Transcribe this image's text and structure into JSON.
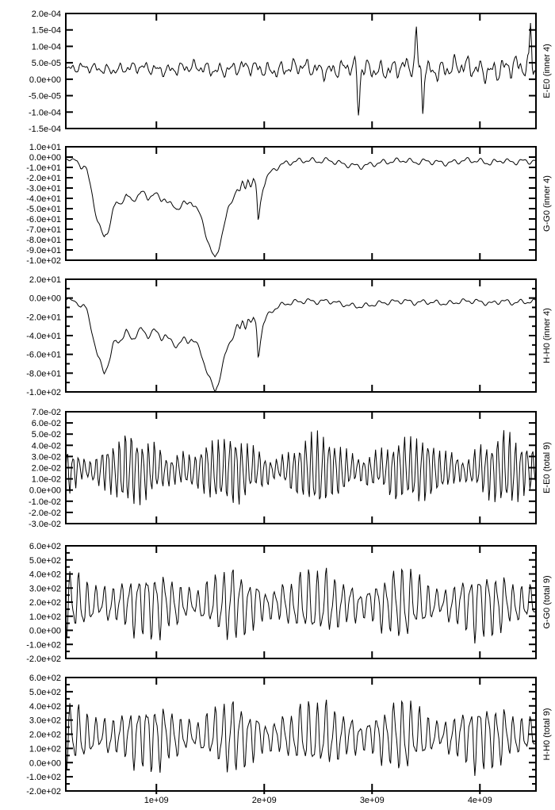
{
  "page": {
    "background": "#ffffff"
  },
  "chart_data": {
    "type": "line",
    "line_color": "#000000",
    "x_axis": {
      "min_e9": 0.16,
      "max_e9": 4.52,
      "ticks": [
        {
          "value_e9": 1,
          "label": "1e+09"
        },
        {
          "value_e9": 2,
          "label": "2e+09"
        },
        {
          "value_e9": 3,
          "label": "3e+09"
        },
        {
          "value_e9": 4,
          "label": "4e+09"
        }
      ]
    },
    "shared_keypoints": {
      "inner_drift": [
        [
          0.16,
          -0.5
        ],
        [
          0.2,
          -2
        ],
        [
          0.235,
          -5
        ],
        [
          0.265,
          -3
        ],
        [
          0.3,
          -10
        ],
        [
          0.325,
          -7
        ],
        [
          0.355,
          -14
        ],
        [
          0.385,
          -26
        ],
        [
          0.42,
          -45
        ],
        [
          0.455,
          -62
        ],
        [
          0.49,
          -72
        ],
        [
          0.515,
          -79
        ],
        [
          0.545,
          -73
        ],
        [
          0.575,
          -62
        ],
        [
          0.6,
          -50
        ],
        [
          0.625,
          -45
        ],
        [
          0.65,
          -47
        ],
        [
          0.675,
          -43
        ],
        [
          0.7,
          -40
        ],
        [
          0.72,
          -36
        ],
        [
          0.745,
          -39
        ],
        [
          0.77,
          -44
        ],
        [
          0.8,
          -41
        ],
        [
          0.83,
          -36
        ],
        [
          0.86,
          -33
        ],
        [
          0.89,
          -37
        ],
        [
          0.92,
          -41
        ],
        [
          0.95,
          -37
        ],
        [
          0.98,
          -34
        ],
        [
          1.01,
          -38
        ],
        [
          1.045,
          -43
        ],
        [
          1.08,
          -39
        ],
        [
          1.115,
          -44
        ],
        [
          1.15,
          -48
        ],
        [
          1.185,
          -51
        ],
        [
          1.22,
          -47
        ],
        [
          1.255,
          -44
        ],
        [
          1.29,
          -47
        ],
        [
          1.325,
          -43
        ],
        [
          1.36,
          -47
        ],
        [
          1.4,
          -55
        ],
        [
          1.44,
          -68
        ],
        [
          1.475,
          -80
        ],
        [
          1.51,
          -91
        ],
        [
          1.545,
          -100
        ],
        [
          1.575,
          -90
        ],
        [
          1.605,
          -76
        ],
        [
          1.635,
          -62
        ],
        [
          1.665,
          -52
        ],
        [
          1.695,
          -44
        ],
        [
          1.725,
          -36
        ],
        [
          1.75,
          -29
        ],
        [
          1.775,
          -34
        ],
        [
          1.8,
          -25
        ],
        [
          1.825,
          -31
        ],
        [
          1.85,
          -21
        ],
        [
          1.875,
          -27
        ],
        [
          1.9,
          -22
        ],
        [
          1.925,
          -30
        ],
        [
          1.945,
          -64
        ],
        [
          1.965,
          -45
        ],
        [
          1.99,
          -28
        ],
        [
          2.02,
          -21
        ],
        [
          2.06,
          -15
        ],
        [
          2.1,
          -11
        ],
        [
          2.15,
          -8
        ],
        [
          2.2,
          -6
        ],
        [
          2.3,
          -4
        ],
        [
          2.4,
          -3
        ],
        [
          2.5,
          -4
        ],
        [
          2.6,
          -3
        ],
        [
          2.7,
          -6
        ],
        [
          2.8,
          -8
        ],
        [
          2.9,
          -9
        ],
        [
          3.0,
          -7
        ],
        [
          3.1,
          -5
        ],
        [
          3.2,
          -4
        ],
        [
          3.3,
          -3
        ],
        [
          3.4,
          -5
        ],
        [
          3.5,
          -4
        ],
        [
          3.6,
          -5
        ],
        [
          3.7,
          -6
        ],
        [
          3.8,
          -4
        ],
        [
          3.9,
          -3
        ],
        [
          4.0,
          -4
        ],
        [
          4.1,
          -6
        ],
        [
          4.2,
          -3
        ],
        [
          4.3,
          -5
        ],
        [
          4.4,
          -4
        ],
        [
          4.52,
          -4
        ]
      ]
    },
    "panels": [
      {
        "id": "e-e0-inner-4",
        "right_label": "E-E0 (inner 4)",
        "x_tick_labels_visible": false,
        "y_axis": {
          "min": -0.00015,
          "max": 0.0002,
          "minor": false,
          "ticks": [
            {
              "value": 0.0002,
              "label": "2.0e-04"
            },
            {
              "value": 0.00015,
              "label": "1.5e-04"
            },
            {
              "value": 0.0001,
              "label": "1.0e-04"
            },
            {
              "value": 5e-05,
              "label": "5.0e-05"
            },
            {
              "value": 0.0,
              "label": "0.0e+00"
            },
            {
              "value": -5e-05,
              "label": "-5.0e-05"
            },
            {
              "value": -0.0001,
              "label": "-1.0e-04"
            },
            {
              "value": -0.00015,
              "label": "-1.5e-04"
            }
          ]
        },
        "series": {
          "kind": "noisy",
          "seed": 11,
          "points": 520,
          "mean": 3.2e-05,
          "amp_ramp": [
            0.55,
            1.4
          ],
          "components": [
            {
              "p": 0.115,
              "a": 1.5e-05
            },
            {
              "p": 0.062,
              "a": 1.15e-05
            },
            {
              "p": 0.034,
              "a": 4.5e-06
            },
            {
              "p": 0.5,
              "a": 7e-06
            }
          ],
          "spikes": [
            {
              "t": 2.875,
              "a": -0.000145,
              "w": 0.015
            },
            {
              "t": 3.41,
              "a": 0.000115,
              "w": 0.012
            },
            {
              "t": 3.47,
              "a": -0.000115,
              "w": 0.012
            },
            {
              "t": 4.47,
              "a": 0.000135,
              "w": 0.012
            }
          ]
        }
      },
      {
        "id": "g-g0-inner-4",
        "right_label": "G-G0 (inner 4)",
        "x_tick_labels_visible": false,
        "y_axis": {
          "min": -100,
          "max": 10,
          "minor": false,
          "ticks": [
            {
              "value": 10,
              "label": "1.0e+01"
            },
            {
              "value": 0,
              "label": "0.0e+00"
            },
            {
              "value": -10,
              "label": "-1.0e+01"
            },
            {
              "value": -20,
              "label": "-2.0e+01"
            },
            {
              "value": -30,
              "label": "-3.0e+01"
            },
            {
              "value": -40,
              "label": "-4.0e+01"
            },
            {
              "value": -50,
              "label": "-5.0e+01"
            },
            {
              "value": -60,
              "label": "-6.0e+01"
            },
            {
              "value": -70,
              "label": "-7.0e+01"
            },
            {
              "value": -80,
              "label": "-8.0e+01"
            },
            {
              "value": -90,
              "label": "-9.0e+01"
            },
            {
              "value": -100,
              "label": "-1.0e+02"
            }
          ]
        },
        "series": {
          "kind": "keypoints",
          "seed": 21,
          "points": 600,
          "keypoints_ref": "inner_drift",
          "noise": [
            {
              "p": 0.13,
              "a": 2.0
            },
            {
              "p": 0.06,
              "a": 1.0
            }
          ]
        }
      },
      {
        "id": "h-h0-inner-4",
        "right_label": "H-H0 (inner 4)",
        "x_tick_labels_visible": false,
        "y_axis": {
          "min": -100,
          "max": 20,
          "minor": true,
          "ticks": [
            {
              "value": 20,
              "label": "2.0e+01"
            },
            {
              "value": 0,
              "label": "0.0e+00"
            },
            {
              "value": -20,
              "label": "-2.0e+01"
            },
            {
              "value": -40,
              "label": "-4.0e+01"
            },
            {
              "value": -60,
              "label": "-6.0e+01"
            },
            {
              "value": -80,
              "label": "-8.0e+01"
            },
            {
              "value": -100,
              "label": "-1.0e+02"
            }
          ]
        },
        "series": {
          "kind": "keypoints",
          "seed": 22,
          "points": 600,
          "keypoints_ref": "inner_drift",
          "noise": [
            {
              "p": 0.13,
              "a": 2.0
            },
            {
              "p": 0.06,
              "a": 1.0
            }
          ]
        }
      },
      {
        "id": "e-e0-total-9",
        "right_label": "E-E0 (total 9)",
        "x_tick_labels_visible": false,
        "y_axis": {
          "min": -0.03,
          "max": 0.07,
          "minor": false,
          "ticks": [
            {
              "value": 0.07,
              "label": "7.0e-02"
            },
            {
              "value": 0.06,
              "label": "6.0e-02"
            },
            {
              "value": 0.05,
              "label": "5.0e-02"
            },
            {
              "value": 0.04,
              "label": "4.0e-02"
            },
            {
              "value": 0.03,
              "label": "3.0e-02"
            },
            {
              "value": 0.02,
              "label": "2.0e-02"
            },
            {
              "value": 0.01,
              "label": "1.0e-02"
            },
            {
              "value": 0.0,
              "label": "0.0e+00"
            },
            {
              "value": -0.01,
              "label": "-1.0e-02"
            },
            {
              "value": -0.02,
              "label": "-2.0e-02"
            },
            {
              "value": -0.03,
              "label": "-3.0e-02"
            }
          ]
        },
        "series": {
          "kind": "am",
          "seed": 4,
          "points": 470,
          "mean": 0.018,
          "carrier_period_e9": 0.054,
          "carrier_mix": [
            0.78,
            0.22
          ],
          "carrier2_ratio": 0.55,
          "amp_base": 0.0235,
          "amp_mod": 0.0145,
          "amp_min": 0.006,
          "env_period_e9": 0.86,
          "noise": [
            {
              "p": 0.23,
              "a": 0.0018
            }
          ]
        }
      },
      {
        "id": "g-g0-total-9",
        "right_label": "G-G0 (total 9)",
        "x_tick_labels_visible": false,
        "y_axis": {
          "min": -200,
          "max": 600,
          "minor": true,
          "ticks": [
            {
              "value": 600,
              "label": "6.0e+02"
            },
            {
              "value": 500,
              "label": "5.0e+02"
            },
            {
              "value": 400,
              "label": "4.0e+02"
            },
            {
              "value": 300,
              "label": "3.0e+02"
            },
            {
              "value": 200,
              "label": "2.0e+02"
            },
            {
              "value": 100,
              "label": "1.0e+02"
            },
            {
              "value": 0,
              "label": "0.0e+00"
            },
            {
              "value": -100,
              "label": "-1.0e+02"
            },
            {
              "value": -200,
              "label": "-2.0e+02"
            }
          ]
        },
        "series": {
          "kind": "am",
          "seed": 7,
          "points": 470,
          "mean": 188,
          "carrier_period_e9": 0.079,
          "carrier_mix": [
            0.74,
            0.26
          ],
          "carrier2_ratio": 0.52,
          "amp_base": 195,
          "amp_mod": 105,
          "amp_min": 55,
          "env_period_e9": 0.78,
          "noise": [
            {
              "p": 0.21,
              "a": 16
            }
          ]
        }
      },
      {
        "id": "h-h0-total-9",
        "right_label": "H-H0 (total 9)",
        "x_tick_labels_visible": true,
        "y_axis": {
          "min": -200,
          "max": 600,
          "minor": true,
          "ticks": [
            {
              "value": 600,
              "label": "6.0e+02"
            },
            {
              "value": 500,
              "label": "5.0e+02"
            },
            {
              "value": 400,
              "label": "4.0e+02"
            },
            {
              "value": 300,
              "label": "3.0e+02"
            },
            {
              "value": 200,
              "label": "2.0e+02"
            },
            {
              "value": 100,
              "label": "1.0e+02"
            },
            {
              "value": 0,
              "label": "0.0e+00"
            },
            {
              "value": -100,
              "label": "-1.0e+02"
            },
            {
              "value": -200,
              "label": "-2.0e+02"
            }
          ]
        },
        "series": {
          "kind": "am",
          "seed": 7,
          "points": 470,
          "mean": 188,
          "carrier_period_e9": 0.079,
          "carrier_mix": [
            0.74,
            0.26
          ],
          "carrier2_ratio": 0.52,
          "amp_base": 195,
          "amp_mod": 105,
          "amp_min": 55,
          "env_period_e9": 0.78,
          "noise": [
            {
              "p": 0.21,
              "a": 16
            }
          ]
        }
      }
    ]
  }
}
